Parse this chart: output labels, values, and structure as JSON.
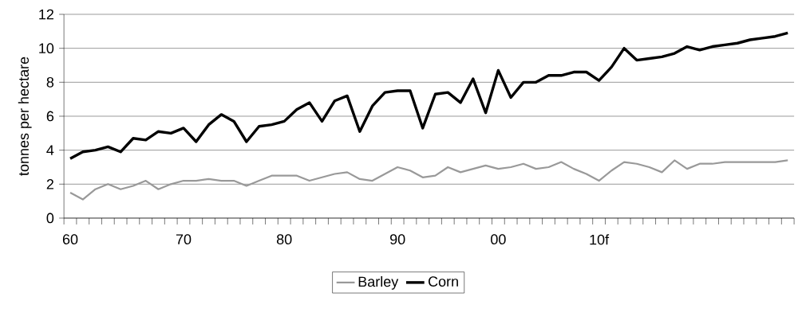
{
  "chart_data": {
    "type": "line",
    "ylabel": "tonnes per hectare",
    "categories": [
      "60",
      null,
      null,
      null,
      null,
      null,
      null,
      null,
      null,
      "70",
      null,
      null,
      null,
      null,
      null,
      null,
      null,
      "80",
      null,
      null,
      null,
      null,
      null,
      null,
      null,
      null,
      "90",
      null,
      null,
      null,
      null,
      null,
      null,
      null,
      "00",
      null,
      null,
      null,
      null,
      null,
      null,
      null,
      "10f",
      null,
      null,
      null,
      null,
      null,
      null,
      null,
      null,
      null,
      null,
      null,
      null,
      null,
      null,
      null
    ],
    "series": [
      {
        "name": "Barley",
        "color": "#999999",
        "values": [
          1.5,
          1.1,
          1.7,
          2.0,
          1.7,
          1.9,
          2.2,
          1.7,
          2.0,
          2.2,
          2.2,
          2.3,
          2.2,
          2.2,
          1.9,
          2.2,
          2.5,
          2.5,
          2.5,
          2.2,
          2.4,
          2.6,
          2.7,
          2.3,
          2.2,
          2.6,
          3.0,
          2.8,
          2.4,
          2.5,
          3.0,
          2.7,
          2.9,
          3.1,
          2.9,
          3.0,
          3.2,
          2.9,
          3.0,
          3.3,
          2.9,
          2.6,
          2.2,
          2.8,
          3.3,
          3.2,
          3.0,
          2.7,
          3.4,
          2.9,
          3.2,
          3.2,
          3.3,
          3.3,
          3.3,
          3.3,
          3.3,
          3.4
        ]
      },
      {
        "name": "Corn",
        "color": "#000000",
        "values": [
          3.5,
          3.9,
          4.0,
          4.2,
          3.9,
          4.7,
          4.6,
          5.1,
          5.0,
          5.3,
          4.5,
          5.5,
          6.1,
          5.7,
          4.5,
          5.4,
          5.5,
          5.7,
          6.4,
          6.8,
          5.7,
          6.9,
          7.2,
          5.1,
          6.6,
          7.4,
          7.5,
          7.5,
          5.3,
          7.3,
          7.4,
          6.8,
          8.2,
          6.2,
          8.7,
          7.1,
          8.0,
          8.0,
          8.4,
          8.4,
          8.6,
          8.6,
          8.1,
          8.9,
          10.0,
          9.3,
          9.4,
          9.5,
          9.7,
          10.1,
          9.9,
          10.1,
          10.2,
          10.3,
          10.5,
          10.6,
          10.7,
          10.9
        ]
      }
    ],
    "ylim": [
      0,
      12
    ],
    "yticks": [
      0,
      2,
      4,
      6,
      8,
      10,
      12
    ],
    "grid": "y",
    "legend": "bottom",
    "marker": "none",
    "line_style": "solid"
  }
}
